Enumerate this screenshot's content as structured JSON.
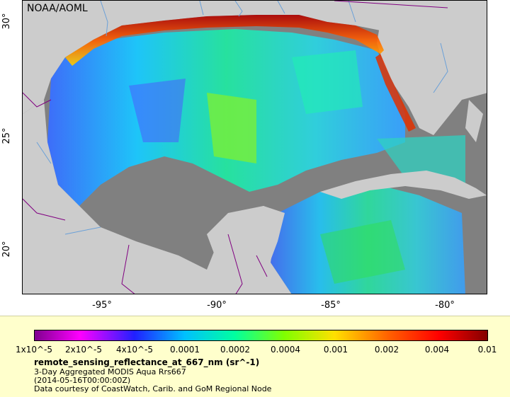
{
  "map": {
    "credit": "NOAA/AOML",
    "lon_ticks": [
      "-95°",
      "-90°",
      "-85°",
      "-80°"
    ],
    "lat_ticks": [
      "30°",
      "25°",
      "20°"
    ]
  },
  "legend": {
    "tick_labels": [
      "1x10^-5",
      "2x10^-5",
      "4x10^-5",
      "0.0001",
      "0.0002",
      "0.0004",
      "0.001",
      "0.002",
      "0.004",
      "0.01"
    ],
    "title": "remote_sensing_reflectance_at_667_nm (sr^-1)",
    "line1": "3-Day Aggregated MODIS Aqua Rrs667",
    "line2": "(2014-05-16T00:00:00Z)",
    "line3": "Data courtesy of CoastWatch, Carib. and GoM Regional Node"
  },
  "colors": {
    "land": "#cccccc",
    "no_data": "#808080",
    "legend_bg": "#ffffcc"
  }
}
